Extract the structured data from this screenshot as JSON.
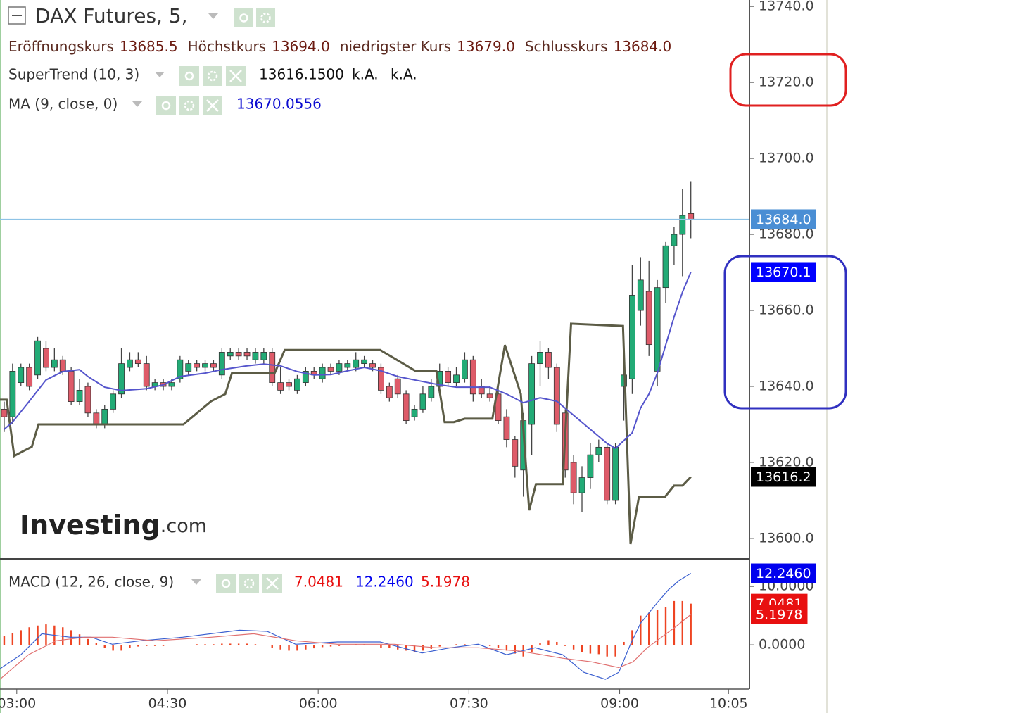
{
  "chart_data": [
    {
      "type": "candlestick",
      "title": "DAX Futures, 5,",
      "ohlc_legend": [
        {
          "name": "Eröffnungskurs",
          "value": 13685.5
        },
        {
          "name": "Höchstkurs",
          "value": 13694,
          "label": "13694.0"
        },
        {
          "name": "niedrigster Kurs",
          "value": 13679,
          "label": "13679.0"
        },
        {
          "name": "Schlusskurs",
          "value": 13684,
          "label": "13684.0"
        }
      ],
      "x": [
        0,
        1,
        2,
        3,
        4,
        5,
        6,
        7,
        8,
        9,
        10,
        11,
        12,
        13,
        14,
        15,
        16,
        17,
        18,
        19,
        20,
        21,
        22,
        23,
        24,
        25,
        26,
        27,
        28,
        29,
        30,
        31,
        32,
        33,
        34,
        35,
        36,
        37,
        38,
        39,
        40,
        41,
        42,
        43,
        44,
        45,
        46,
        47,
        48,
        49,
        50,
        51,
        52,
        53,
        54,
        55,
        56,
        57,
        58,
        59,
        60,
        61,
        62,
        63,
        64,
        65,
        66,
        67,
        68,
        69,
        70,
        71,
        72,
        73,
        74,
        75,
        76,
        77,
        78,
        79,
        80,
        81,
        82
      ],
      "open": [
        13634,
        13632,
        13641,
        13645,
        13643,
        13650,
        13645,
        13647,
        13644,
        13636,
        13640,
        13633,
        13630,
        13634,
        13638,
        13645,
        13647,
        13646,
        13640,
        13641,
        13640,
        13642,
        13644,
        13646,
        13645,
        13646,
        13643,
        13648,
        13649,
        13649,
        13647,
        13647,
        13649,
        13641,
        13641,
        13639,
        13641,
        13644,
        13642,
        13645,
        13644,
        13645,
        13645,
        13646,
        13646,
        13645,
        13640,
        13642,
        13638,
        13632,
        13634,
        13637,
        13640,
        13644,
        13641,
        13642,
        13647,
        13640,
        13638,
        13638,
        13632,
        13626,
        13618,
        13630,
        13646,
        13649,
        13645,
        13633,
        13620,
        13612,
        13616,
        13622,
        13624,
        13610,
        13640,
        13642,
        13660,
        13665,
        13644,
        13666,
        13677,
        13680,
        13685.5
      ],
      "high": [
        13636,
        13646,
        13646,
        13646,
        13653,
        13652,
        13650,
        13648,
        13645,
        13642,
        13641,
        13634,
        13635,
        13639,
        13650,
        13649,
        13649,
        13648,
        13642,
        13642,
        13642,
        13648,
        13647,
        13647,
        13647,
        13647,
        13650,
        13650,
        13650,
        13650,
        13650,
        13650,
        13650,
        13645,
        13642,
        13643,
        13645,
        13645,
        13646,
        13646,
        13647,
        13647,
        13649,
        13648,
        13647,
        13646,
        13641,
        13643,
        13639,
        13635,
        13640,
        13642,
        13646,
        13645,
        13645,
        13649,
        13648,
        13642,
        13640,
        13640,
        13634,
        13627,
        13633,
        13648,
        13652,
        13650,
        13646,
        13634,
        13622,
        13619,
        13625,
        13626,
        13625,
        13625,
        13647,
        13672,
        13674,
        13673,
        13668,
        13678,
        13682,
        13692,
        13694
      ],
      "low": [
        13628,
        13630,
        13640,
        13639,
        13642,
        13644,
        13644,
        13643,
        13635,
        13635,
        13632,
        13629,
        13629,
        13633,
        13637,
        13644,
        13645,
        13639,
        13639,
        13639,
        13639,
        13641,
        13643,
        13644,
        13644,
        13644,
        13642,
        13647,
        13647,
        13647,
        13646,
        13646,
        13640,
        13638,
        13639,
        13638,
        13640,
        13642,
        13641,
        13643,
        13643,
        13644,
        13644,
        13645,
        13644,
        13638,
        13636,
        13637,
        13630,
        13631,
        13633,
        13636,
        13638,
        13640,
        13640,
        13641,
        13636,
        13637,
        13636,
        13630,
        13624,
        13616,
        13611,
        13622,
        13640,
        13642,
        13628,
        13616,
        13609,
        13607,
        13613,
        13620,
        13609,
        13609,
        13631,
        13638,
        13656,
        13648,
        13640,
        13662,
        13672,
        13669,
        13679
      ],
      "close": [
        13632,
        13644,
        13645,
        13640,
        13652,
        13645,
        13647,
        13644,
        13636,
        13639,
        13633,
        13630,
        13634,
        13638,
        13646,
        13647,
        13646,
        13640,
        13641,
        13640,
        13641,
        13647,
        13646,
        13645,
        13646,
        13645,
        13649,
        13649,
        13648,
        13648,
        13649,
        13649,
        13641,
        13639,
        13640,
        13642,
        13644,
        13643,
        13645,
        13644,
        13646,
        13646,
        13647,
        13647,
        13645,
        13639,
        13637,
        13638,
        13631,
        13634,
        13638,
        13640,
        13644,
        13641,
        13643,
        13647,
        13638,
        13638,
        13637,
        13631,
        13626,
        13619,
        13631,
        13646,
        13649,
        13645,
        13630,
        13618,
        13612,
        13616,
        13622,
        13624,
        13610,
        13624,
        13643,
        13664,
        13668,
        13651,
        13666,
        13677,
        13680,
        13685,
        13684
      ],
      "up_color": "#22ab76",
      "down_color": "#de5b69",
      "price_line_color": "#8ec3e6",
      "series": [
        {
          "name": "SuperTrend (10, 3)",
          "color": "#5c5c46",
          "x": [
            -0.5,
            0.3,
            1.2,
            2.4,
            3.3,
            4.1,
            21.4,
            24.7,
            26.4,
            27.2,
            32.3,
            33.5,
            44.9,
            49.1,
            51.6,
            52.6,
            53.7,
            55,
            58.3,
            59.8,
            61.7,
            62.7,
            63.5,
            66.7,
            67.7,
            73.9,
            74.8,
            75.8,
            78.9,
            80,
            81,
            82
          ],
          "values": [
            13636.5,
            13636.5,
            13621.7,
            13623.1,
            13624.1,
            13630.0,
            13630.0,
            13636.1,
            13638.0,
            13643.5,
            13643.5,
            13649.6,
            13649.6,
            13644.1,
            13644.1,
            13630.6,
            13630.6,
            13631.5,
            13631.5,
            13650.9,
            13638.0,
            13607.4,
            13614.3,
            13614.3,
            13656.5,
            13655.9,
            13598.5,
            13610.9,
            13610.9,
            13613.9,
            13613.9,
            13616.2
          ],
          "legend_values": [
            "13616.1500",
            "k.A.",
            "k.A."
          ]
        },
        {
          "name": "MA (9, close, 0)",
          "color": "#5555cc",
          "x": [
            0,
            1,
            3,
            5,
            7,
            9,
            10,
            12,
            14,
            17,
            19,
            21,
            24,
            26,
            29,
            31,
            33,
            35,
            37,
            39,
            41,
            43,
            45,
            47,
            49,
            52,
            54,
            56,
            58,
            60,
            62,
            64,
            66,
            68,
            70,
            72,
            73,
            75,
            76,
            77,
            78,
            79,
            80,
            81,
            82
          ],
          "values": [
            13628.7,
            13630.6,
            13636.1,
            13641.7,
            13643.9,
            13644.4,
            13642.6,
            13639.8,
            13638.9,
            13639.4,
            13640.4,
            13642.6,
            13643.5,
            13644.4,
            13645.4,
            13645.9,
            13645.4,
            13643.9,
            13643.0,
            13643.1,
            13644.1,
            13645.0,
            13644.1,
            13642.6,
            13641.7,
            13640.4,
            13639.8,
            13639.8,
            13639.8,
            13638.0,
            13635.7,
            13637.0,
            13636.1,
            13632.4,
            13628.7,
            13625.0,
            13623.7,
            13627.8,
            13634.3,
            13638.0,
            13643.5,
            13650.9,
            13658.3,
            13664.8,
            13670.1
          ],
          "legend_values": [
            "13670.0556"
          ]
        }
      ],
      "price_labels": [
        {
          "value": 13684,
          "label": "13684.0",
          "color": "#4a8ed4"
        },
        {
          "value": 13670.1,
          "color": "#0000ff"
        },
        {
          "value": 13616.2,
          "color": "#000000"
        }
      ],
      "watermark": "Investing",
      "watermark_suffix": ".com",
      "xlim": [
        -0.5,
        89
      ],
      "ylim": [
        13594.8,
        13741.7
      ],
      "yticks": [
        {
          "value": 13600,
          "label": "13600.0"
        },
        {
          "value": 13620,
          "label": "13620.0"
        },
        {
          "value": 13640,
          "label": "13640.0"
        },
        {
          "value": 13660,
          "label": "13660.0"
        },
        {
          "value": 13680,
          "label": "13680.0"
        },
        {
          "value": 13700,
          "label": "13700.0"
        },
        {
          "value": 13720,
          "label": "13720.0"
        },
        {
          "value": 13740,
          "label": "13740.0"
        }
      ]
    },
    {
      "type": "macd",
      "title": "MACD (12, 26, close, 9)",
      "histogram": [
        1.5,
        2,
        2.5,
        3,
        3.3,
        3.5,
        3.3,
        3,
        2.5,
        1.8,
        1,
        0.3,
        -0.5,
        -1,
        -1,
        -0.5,
        -0.3,
        -0.2,
        -0.2,
        -0.2,
        -0.1,
        -0.1,
        -0.1,
        0.1,
        0.1,
        0.1,
        0.2,
        0.2,
        0.2,
        0.2,
        0.1,
        0,
        -0.5,
        -0.8,
        -1,
        -1,
        -0.8,
        -0.6,
        -0.4,
        -0.3,
        -0.2,
        -0.1,
        0.1,
        0.1,
        0,
        -0.5,
        -0.5,
        -0.8,
        -1,
        -1.2,
        -1,
        -0.7,
        -0.3,
        -0.1,
        0.1,
        0.1,
        -0.1,
        -0.1,
        -0.2,
        -0.5,
        -1,
        -1.5,
        -2,
        -1.2,
        0.3,
        0.8,
        0.5,
        -0.2,
        -0.8,
        -1.2,
        -1.5,
        -1.6,
        -2,
        -2,
        0.5,
        2.5,
        5,
        5.5,
        6,
        6.5,
        7.5,
        7.5,
        7.0481
      ],
      "histogram_color": "#ee4422",
      "lines": [
        {
          "color": "#3a5fd0",
          "x": [
            -0.5,
            2,
            4.5,
            7.9,
            10.4,
            12.9,
            16.3,
            21.3,
            28.1,
            31.4,
            34.8,
            39.8,
            44.9,
            49.9,
            53.3,
            56.6,
            60,
            63.4,
            66.7,
            69.2,
            71.8,
            73.4,
            74.8,
            76,
            77.7,
            79.3,
            80.6,
            82
          ],
          "values": [
            -4.1,
            -1.7,
            1.9,
            1.3,
            1.3,
            0.1,
            0.7,
            1.3,
            2.5,
            2.3,
            0.1,
            0.5,
            0.5,
            -1.4,
            -0.5,
            0.1,
            -1.7,
            -0.5,
            -1.7,
            -4.7,
            -5.9,
            -4.7,
            0.1,
            3.7,
            6.7,
            9.4,
            11.0,
            12.246
          ]
        },
        {
          "color": "#e07070",
          "x": [
            -0.5,
            2.9,
            6.2,
            9.6,
            12.9,
            18,
            24.7,
            29.8,
            34.8,
            39.8,
            46.6,
            51.6,
            56.6,
            61.7,
            66.7,
            70.1,
            73.4,
            75.1,
            76.8,
            78.5,
            80.2,
            82
          ],
          "values": [
            -5.9,
            -1.7,
            0.7,
            1.3,
            1.3,
            0.7,
            1.3,
            1.9,
            0.7,
            0.1,
            0.1,
            -0.5,
            -0.5,
            -1.1,
            -2.3,
            -2.9,
            -3.9,
            -2.9,
            -0.5,
            1.3,
            3.1,
            5.1978
          ]
        }
      ],
      "legend_values": [
        {
          "value": 7.0481,
          "color": "#e81010"
        },
        {
          "value": 12.246,
          "label": "12.2460",
          "color": "#0000ee"
        },
        {
          "value": 5.1978,
          "color": "#e81010"
        }
      ],
      "xlim": [
        -0.5,
        89
      ],
      "ylim": [
        -7.7,
        14.6
      ],
      "yticks": [
        {
          "value": 0,
          "label": "0.0000"
        },
        {
          "value": 10,
          "label": "10.0000"
        }
      ],
      "xticks": [
        {
          "value": 1.5,
          "label": "03:00"
        },
        {
          "value": 19.5,
          "label": "04:30"
        },
        {
          "value": 37.5,
          "label": "06:00"
        },
        {
          "value": 55.5,
          "label": "07:30"
        },
        {
          "value": 73.5,
          "label": "09:00"
        },
        {
          "value": 86.5,
          "label": "10:05"
        }
      ]
    }
  ]
}
